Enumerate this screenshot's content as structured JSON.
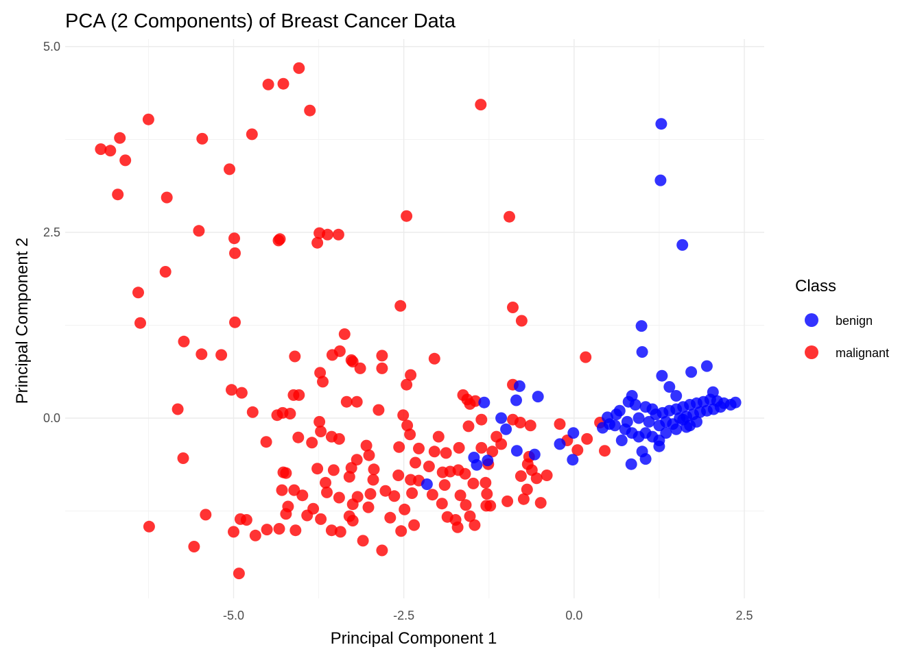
{
  "colors": {
    "benign": "#0000FF",
    "malignant": "#FF0000"
  },
  "chart_data": {
    "type": "scatter",
    "title": "PCA (2 Components) of Breast Cancer Data",
    "xlabel": "Principal Component 1",
    "ylabel": "Principal Component 2",
    "xlim": [
      -7.0,
      2.8
    ],
    "ylim": [
      -2.4,
      5.0
    ],
    "x_ticks": [
      -5.0,
      -2.5,
      0.0,
      2.5
    ],
    "x_tick_labels": [
      "-5.0",
      "-2.5",
      "0.0",
      "2.5"
    ],
    "y_ticks": [
      0.0,
      2.5,
      5.0
    ],
    "y_tick_labels": [
      "0.0",
      "2.5",
      "5.0"
    ],
    "grid": true,
    "legend": {
      "title": "Class",
      "position": "right",
      "entries": [
        {
          "label": "benign",
          "color": "#0000FF"
        },
        {
          "label": "malignant",
          "color": "#FF0000"
        }
      ]
    },
    "series": [
      {
        "name": "malignant",
        "color": "#FF0000",
        "points": [
          [
            -4.04,
            4.71
          ],
          [
            -4.27,
            4.5
          ],
          [
            -4.49,
            4.49
          ],
          [
            -3.88,
            4.14
          ],
          [
            -1.37,
            4.22
          ],
          [
            -6.25,
            4.02
          ],
          [
            -4.73,
            3.82
          ],
          [
            -6.67,
            3.77
          ],
          [
            -6.95,
            3.62
          ],
          [
            -6.81,
            3.6
          ],
          [
            -5.46,
            3.76
          ],
          [
            -6.59,
            3.47
          ],
          [
            -5.06,
            3.35
          ],
          [
            -6.7,
            3.01
          ],
          [
            -5.98,
            2.97
          ],
          [
            -2.46,
            2.72
          ],
          [
            -0.95,
            2.71
          ],
          [
            -5.51,
            2.52
          ],
          [
            -4.99,
            2.42
          ],
          [
            -3.74,
            2.49
          ],
          [
            -3.62,
            2.47
          ],
          [
            -3.46,
            2.47
          ],
          [
            -3.77,
            2.36
          ],
          [
            -4.32,
            2.41
          ],
          [
            -4.34,
            2.39
          ],
          [
            -4.98,
            2.22
          ],
          [
            -6.0,
            1.97
          ],
          [
            -6.4,
            1.69
          ],
          [
            -2.55,
            1.51
          ],
          [
            -0.9,
            1.49
          ],
          [
            -0.77,
            1.31
          ],
          [
            -6.37,
            1.28
          ],
          [
            -4.98,
            1.29
          ],
          [
            -5.73,
            1.03
          ],
          [
            -3.37,
            1.13
          ],
          [
            -3.44,
            0.9
          ],
          [
            -3.55,
            0.85
          ],
          [
            -3.27,
            0.78
          ],
          [
            -3.25,
            0.76
          ],
          [
            -3.14,
            0.67
          ],
          [
            -2.82,
            0.84
          ],
          [
            -2.82,
            0.67
          ],
          [
            -5.47,
            0.86
          ],
          [
            -5.18,
            0.85
          ],
          [
            -4.1,
            0.83
          ],
          [
            -2.05,
            0.8
          ],
          [
            0.17,
            0.82
          ],
          [
            -3.73,
            0.61
          ],
          [
            -3.69,
            0.49
          ],
          [
            -2.4,
            0.58
          ],
          [
            -2.46,
            0.45
          ],
          [
            -5.03,
            0.38
          ],
          [
            -4.88,
            0.34
          ],
          [
            -4.12,
            0.31
          ],
          [
            -4.04,
            0.31
          ],
          [
            -3.34,
            0.22
          ],
          [
            -3.19,
            0.22
          ],
          [
            -1.63,
            0.31
          ],
          [
            -1.57,
            0.25
          ],
          [
            -1.45,
            0.23
          ],
          [
            -1.53,
            0.19
          ],
          [
            -0.9,
            0.45
          ],
          [
            -5.82,
            0.12
          ],
          [
            -4.72,
            0.08
          ],
          [
            -4.28,
            0.07
          ],
          [
            -4.17,
            0.06
          ],
          [
            -4.36,
            0.04
          ],
          [
            -2.87,
            0.11
          ],
          [
            -2.51,
            0.04
          ],
          [
            -1.36,
            -0.02
          ],
          [
            -1.55,
            -0.11
          ],
          [
            -0.9,
            -0.02
          ],
          [
            -0.79,
            -0.06
          ],
          [
            -0.64,
            -0.1
          ],
          [
            -3.74,
            -0.05
          ],
          [
            -3.72,
            -0.18
          ],
          [
            -2.45,
            -0.1
          ],
          [
            -2.41,
            -0.22
          ],
          [
            -1.99,
            -0.25
          ],
          [
            -2.05,
            -0.45
          ],
          [
            -1.14,
            -0.25
          ],
          [
            -0.21,
            -0.08
          ],
          [
            0.38,
            -0.06
          ],
          [
            0.19,
            -0.28
          ],
          [
            -4.05,
            -0.26
          ],
          [
            -3.85,
            -0.33
          ],
          [
            -3.56,
            -0.25
          ],
          [
            -3.45,
            -0.28
          ],
          [
            -3.05,
            -0.37
          ],
          [
            -2.57,
            -0.39
          ],
          [
            -2.28,
            -0.41
          ],
          [
            -1.88,
            -0.47
          ],
          [
            -1.69,
            -0.4
          ],
          [
            -1.36,
            -0.4
          ],
          [
            -1.2,
            -0.45
          ],
          [
            -1.07,
            -0.35
          ],
          [
            -5.74,
            -0.54
          ],
          [
            -4.52,
            -0.32
          ],
          [
            -3.77,
            -0.68
          ],
          [
            -3.53,
            -0.7
          ],
          [
            -3.19,
            -0.56
          ],
          [
            -3.01,
            -0.5
          ],
          [
            -2.94,
            -0.69
          ],
          [
            -2.33,
            -0.6
          ],
          [
            -2.13,
            -0.65
          ],
          [
            -1.93,
            -0.73
          ],
          [
            -1.82,
            -0.72
          ],
          [
            -1.7,
            -0.7
          ],
          [
            -1.6,
            -0.75
          ],
          [
            -1.26,
            -0.62
          ],
          [
            -0.66,
            -0.52
          ],
          [
            -0.68,
            -0.62
          ],
          [
            -0.62,
            -0.7
          ],
          [
            -0.4,
            -0.77
          ],
          [
            -0.55,
            -0.81
          ],
          [
            0.05,
            -0.43
          ],
          [
            0.45,
            -0.44
          ],
          [
            -4.27,
            -0.73
          ],
          [
            -4.23,
            -0.74
          ],
          [
            -3.65,
            -0.87
          ],
          [
            -3.3,
            -0.79
          ],
          [
            -3.27,
            -0.67
          ],
          [
            -2.95,
            -0.83
          ],
          [
            -2.58,
            -0.77
          ],
          [
            -2.4,
            -0.83
          ],
          [
            -2.28,
            -0.84
          ],
          [
            -1.9,
            -0.9
          ],
          [
            -1.48,
            -0.88
          ],
          [
            -1.3,
            -0.87
          ],
          [
            -4.29,
            -0.97
          ],
          [
            -4.11,
            -0.97
          ],
          [
            -3.99,
            -1.04
          ],
          [
            -3.63,
            -1.0
          ],
          [
            -3.45,
            -1.07
          ],
          [
            -3.18,
            -1.06
          ],
          [
            -2.99,
            -1.02
          ],
          [
            -2.77,
            -0.98
          ],
          [
            -2.64,
            -1.05
          ],
          [
            -2.38,
            -1.01
          ],
          [
            -2.08,
            -1.03
          ],
          [
            -1.67,
            -1.04
          ],
          [
            -1.28,
            -1.02
          ],
          [
            -0.74,
            -1.09
          ],
          [
            -0.49,
            -1.14
          ],
          [
            -4.2,
            -1.19
          ],
          [
            -3.83,
            -1.22
          ],
          [
            -3.25,
            -1.16
          ],
          [
            -3.02,
            -1.2
          ],
          [
            -2.49,
            -1.23
          ],
          [
            -1.94,
            -1.15
          ],
          [
            -1.59,
            -1.17
          ],
          [
            -1.23,
            -1.18
          ],
          [
            -5.41,
            -1.3
          ],
          [
            -4.9,
            -1.36
          ],
          [
            -4.81,
            -1.37
          ],
          [
            -4.23,
            -1.29
          ],
          [
            -3.92,
            -1.31
          ],
          [
            -3.72,
            -1.36
          ],
          [
            -3.3,
            -1.32
          ],
          [
            -3.25,
            -1.38
          ],
          [
            -2.7,
            -1.34
          ],
          [
            -1.86,
            -1.33
          ],
          [
            -1.74,
            -1.37
          ],
          [
            -1.53,
            -1.32
          ],
          [
            -6.24,
            -1.46
          ],
          [
            -5.0,
            -1.53
          ],
          [
            -4.68,
            -1.58
          ],
          [
            -4.51,
            -1.5
          ],
          [
            -4.33,
            -1.49
          ],
          [
            -4.09,
            -1.51
          ],
          [
            -3.56,
            -1.51
          ],
          [
            -3.43,
            -1.53
          ],
          [
            -3.1,
            -1.65
          ],
          [
            -2.54,
            -1.52
          ],
          [
            -2.35,
            -1.44
          ],
          [
            -1.71,
            -1.47
          ],
          [
            -1.46,
            -1.44
          ],
          [
            -5.58,
            -1.73
          ],
          [
            -4.92,
            -2.09
          ],
          [
            -2.82,
            -1.78
          ],
          [
            -1.29,
            -1.18
          ],
          [
            -0.98,
            -1.12
          ],
          [
            -0.69,
            -0.96
          ],
          [
            -0.78,
            -0.78
          ],
          [
            -0.1,
            -0.3
          ]
        ]
      },
      {
        "name": "benign",
        "color": "#0000FF",
        "points": [
          [
            1.28,
            3.96
          ],
          [
            1.27,
            3.2
          ],
          [
            1.59,
            2.33
          ],
          [
            0.99,
            1.24
          ],
          [
            1.0,
            0.89
          ],
          [
            1.29,
            0.57
          ],
          [
            1.72,
            0.62
          ],
          [
            1.95,
            0.7
          ],
          [
            1.4,
            0.42
          ],
          [
            1.5,
            0.3
          ],
          [
            2.04,
            0.35
          ],
          [
            2.37,
            0.21
          ],
          [
            -0.8,
            0.43
          ],
          [
            -0.85,
            0.24
          ],
          [
            -0.53,
            0.29
          ],
          [
            -1.32,
            0.21
          ],
          [
            -1.07,
            0.0
          ],
          [
            0.85,
            0.3
          ],
          [
            0.8,
            0.22
          ],
          [
            0.67,
            0.1
          ],
          [
            0.62,
            0.05
          ],
          [
            0.49,
            0.01
          ],
          [
            0.52,
            -0.08
          ],
          [
            0.42,
            -0.13
          ],
          [
            0.9,
            0.18
          ],
          [
            1.05,
            0.15
          ],
          [
            1.15,
            0.12
          ],
          [
            1.2,
            0.05
          ],
          [
            1.3,
            0.07
          ],
          [
            1.4,
            0.1
          ],
          [
            1.5,
            0.12
          ],
          [
            1.6,
            0.15
          ],
          [
            1.7,
            0.18
          ],
          [
            1.8,
            0.2
          ],
          [
            1.9,
            0.22
          ],
          [
            2.0,
            0.25
          ],
          [
            2.1,
            0.23
          ],
          [
            2.2,
            0.2
          ],
          [
            2.3,
            0.18
          ],
          [
            1.1,
            -0.05
          ],
          [
            1.25,
            -0.1
          ],
          [
            1.35,
            -0.05
          ],
          [
            1.45,
            -0.08
          ],
          [
            1.55,
            0.0
          ],
          [
            1.65,
            0.02
          ],
          [
            1.75,
            0.05
          ],
          [
            1.85,
            0.08
          ],
          [
            1.95,
            0.1
          ],
          [
            2.05,
            0.12
          ],
          [
            2.15,
            0.15
          ],
          [
            0.75,
            -0.15
          ],
          [
            0.85,
            -0.2
          ],
          [
            0.95,
            -0.25
          ],
          [
            1.05,
            -0.2
          ],
          [
            1.15,
            -0.25
          ],
          [
            1.25,
            -0.3
          ],
          [
            1.35,
            -0.2
          ],
          [
            1.5,
            -0.15
          ],
          [
            1.65,
            -0.12
          ],
          [
            1.8,
            -0.05
          ],
          [
            0.7,
            -0.3
          ],
          [
            1.0,
            -0.45
          ],
          [
            1.05,
            -0.55
          ],
          [
            1.25,
            -0.38
          ],
          [
            0.84,
            -0.62
          ],
          [
            -0.01,
            -0.2
          ],
          [
            -0.21,
            -0.35
          ],
          [
            -0.02,
            -0.56
          ],
          [
            -0.58,
            -0.49
          ],
          [
            -0.84,
            -0.44
          ],
          [
            -1.47,
            -0.53
          ],
          [
            -1.43,
            -0.63
          ],
          [
            -1.27,
            -0.57
          ],
          [
            -2.16,
            -0.89
          ],
          [
            -1.0,
            -0.15
          ],
          [
            0.6,
            -0.1
          ],
          [
            0.78,
            -0.05
          ],
          [
            0.95,
            0.0
          ],
          [
            1.6,
            -0.02
          ],
          [
            1.7,
            -0.1
          ]
        ]
      }
    ]
  }
}
